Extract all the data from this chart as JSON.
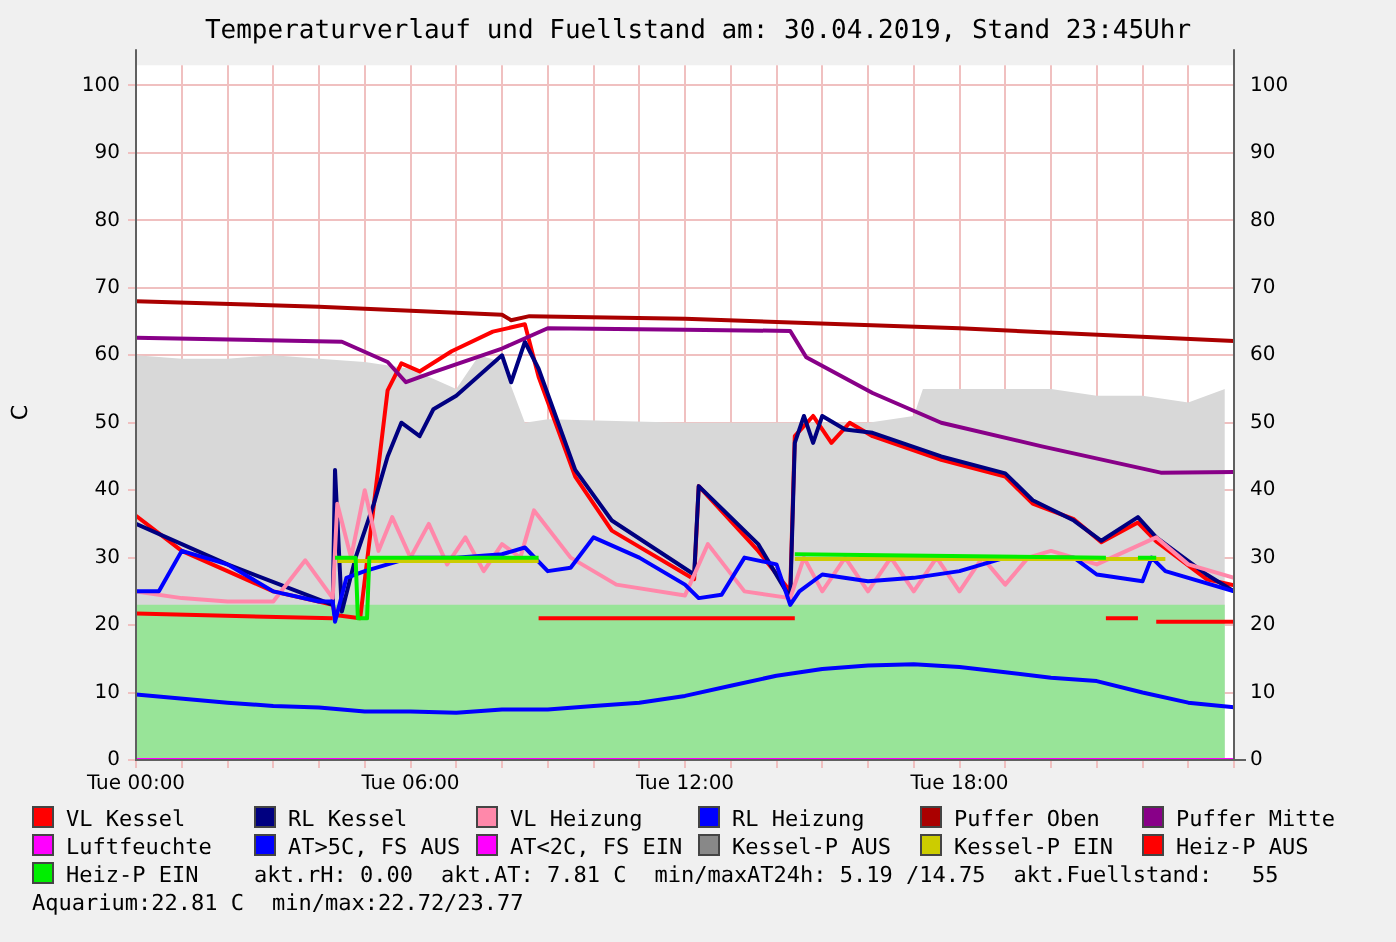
{
  "chart_data": {
    "type": "line",
    "title": "Temperaturverlauf und Fuellstand am: 30.04.2019, Stand 23:45Uhr",
    "ylabel": "C",
    "xlim": [
      "2019-04-30T00:00",
      "2019-05-01T00:00"
    ],
    "xticks": [
      {
        "value": "2019-04-30T00:00",
        "label": "Tue 00:00"
      },
      {
        "value": "2019-04-30T01:00",
        "label": null
      },
      {
        "value": "2019-04-30T02:00",
        "label": null
      },
      {
        "value": "2019-04-30T03:00",
        "label": null
      },
      {
        "value": "2019-04-30T04:00",
        "label": null
      },
      {
        "value": "2019-04-30T05:00",
        "label": null
      },
      {
        "value": "2019-04-30T06:00",
        "label": "Tue 06:00"
      },
      {
        "value": "2019-04-30T07:00",
        "label": null
      },
      {
        "value": "2019-04-30T08:00",
        "label": null
      },
      {
        "value": "2019-04-30T09:00",
        "label": null
      },
      {
        "value": "2019-04-30T10:00",
        "label": null
      },
      {
        "value": "2019-04-30T11:00",
        "label": null
      },
      {
        "value": "2019-04-30T12:00",
        "label": "Tue 12:00"
      },
      {
        "value": "2019-04-30T13:00",
        "label": null
      },
      {
        "value": "2019-04-30T14:00",
        "label": null
      },
      {
        "value": "2019-04-30T15:00",
        "label": null
      },
      {
        "value": "2019-04-30T16:00",
        "label": null
      },
      {
        "value": "2019-04-30T17:00",
        "label": null
      },
      {
        "value": "2019-04-30T18:00",
        "label": "Tue 18:00"
      },
      {
        "value": "2019-04-30T19:00",
        "label": null
      },
      {
        "value": "2019-04-30T20:00",
        "label": null
      },
      {
        "value": "2019-04-30T21:00",
        "label": null
      },
      {
        "value": "2019-04-30T22:00",
        "label": null
      },
      {
        "value": "2019-04-30T23:00",
        "label": null
      },
      {
        "value": "2019-05-01T00:00",
        "label": null
      }
    ],
    "ylim": [
      0,
      103
    ],
    "yticks": [
      0,
      10,
      20,
      30,
      40,
      50,
      60,
      70,
      80,
      90,
      100
    ],
    "y2lim": [
      0,
      103
    ],
    "y2ticks": [
      0,
      10,
      20,
      30,
      40,
      50,
      60,
      70,
      80,
      90,
      100
    ],
    "grid": true,
    "legend": "bottom",
    "marker": "none",
    "series": [
      {
        "type": "area",
        "color": "#d8d8d8",
        "x": [
          "2019-04-30T00:00",
          "2019-04-30T01:00",
          "2019-04-30T02:00",
          "2019-04-30T03:00",
          "2019-04-30T04:00",
          "2019-04-30T05:00",
          "2019-04-30T06:00",
          "2019-04-30T07:00",
          "2019-04-30T07:30",
          "2019-04-30T08:00",
          "2019-04-30T08:30",
          "2019-04-30T09:00",
          "2019-04-30T12:00",
          "2019-04-30T16:00",
          "2019-04-30T17:00",
          "2019-04-30T17:12",
          "2019-04-30T19:00",
          "2019-04-30T20:00",
          "2019-04-30T21:00",
          "2019-04-30T22:00",
          "2019-04-30T23:00",
          "2019-04-30T23:48"
        ],
        "values": [
          60,
          59.5,
          59.5,
          60,
          59.5,
          59,
          58,
          55,
          60,
          59,
          50,
          50.5,
          50,
          50,
          51,
          55,
          55,
          55,
          54,
          54,
          53,
          55
        ]
      },
      {
        "type": "area",
        "color": "#98e498",
        "x": [
          "2019-04-30T00:00",
          "2019-04-30T23:48"
        ],
        "values": [
          23,
          23
        ]
      },
      {
        "name": "VL Kessel",
        "color": "#ff0000",
        "x": [
          "2019-04-30T00:00",
          "2019-04-30T01:00",
          "2019-04-30T02:00",
          "2019-04-30T03:00",
          "2019-04-30T04:18",
          "2019-04-30T04:21",
          "2019-04-30T04:54",
          "2019-04-30T05:30",
          "2019-04-30T05:48",
          "2019-04-30T06:12",
          "2019-04-30T06:54",
          "2019-04-30T07:48",
          "2019-04-30T08:30",
          "2019-04-30T08:48",
          "2019-04-30T09:36",
          "2019-04-30T10:24",
          "2019-04-30T12:12",
          "2019-04-30T12:18",
          "2019-04-30T13:36",
          "2019-04-30T14:18",
          "2019-04-30T14:24",
          "2019-04-30T14:48",
          "2019-04-30T15:12",
          "2019-04-30T15:36",
          "2019-04-30T16:06",
          "2019-04-30T17:36",
          "2019-04-30T19:00",
          "2019-04-30T19:36",
          "2019-04-30T20:30",
          "2019-04-30T21:06",
          "2019-04-30T21:54",
          "2019-04-30T22:18",
          "2019-04-30T23:24",
          "2019-05-01T00:00"
        ],
        "values": [
          36.2,
          31,
          28,
          25,
          23,
          21.5,
          21,
          54.8,
          58.8,
          57.6,
          60.6,
          63.5,
          64.6,
          56.8,
          42,
          34,
          26.8,
          40.6,
          31,
          25,
          48,
          51,
          47,
          50,
          48,
          44.5,
          42,
          38,
          35.7,
          32.3,
          35.2,
          32.4,
          26.8,
          25.9
        ]
      },
      {
        "name": "RL Kessel",
        "color": "#000080",
        "x": [
          "2019-04-30T00:00",
          "2019-04-30T02:00",
          "2019-04-30T04:18",
          "2019-04-30T04:21",
          "2019-04-30T04:30",
          "2019-04-30T04:48",
          "2019-04-30T05:12",
          "2019-04-30T05:30",
          "2019-04-30T05:48",
          "2019-04-30T06:12",
          "2019-04-30T06:30",
          "2019-04-30T07:00",
          "2019-04-30T07:30",
          "2019-04-30T08:00",
          "2019-04-30T08:12",
          "2019-04-30T08:30",
          "2019-04-30T08:48",
          "2019-04-30T09:36",
          "2019-04-30T10:24",
          "2019-04-30T12:12",
          "2019-04-30T12:18",
          "2019-04-30T13:36",
          "2019-04-30T14:18",
          "2019-04-30T14:24",
          "2019-04-30T14:36",
          "2019-04-30T14:48",
          "2019-04-30T15:00",
          "2019-04-30T15:30",
          "2019-04-30T16:06",
          "2019-04-30T17:36",
          "2019-04-30T19:00",
          "2019-04-30T19:36",
          "2019-04-30T20:30",
          "2019-04-30T21:06",
          "2019-04-30T21:54",
          "2019-04-30T22:18",
          "2019-04-30T23:24",
          "2019-05-01T00:00"
        ],
        "values": [
          35,
          29,
          23,
          43,
          22,
          30,
          38,
          45,
          50,
          48,
          52,
          54,
          57,
          60,
          56,
          62,
          58,
          43,
          35.5,
          27.5,
          40.6,
          32,
          24,
          47,
          51,
          47,
          51,
          49,
          48.5,
          45,
          42.5,
          38.5,
          35.5,
          32.5,
          36,
          33,
          27.5,
          25
        ]
      },
      {
        "name": "VL Heizung",
        "color": "#ff88aa",
        "x": [
          "2019-04-30T00:00",
          "2019-04-30T01:00",
          "2019-04-30T02:00",
          "2019-04-30T03:00",
          "2019-04-30T03:42",
          "2019-04-30T04:18",
          "2019-04-30T04:24",
          "2019-04-30T04:42",
          "2019-04-30T05:00",
          "2019-04-30T05:18",
          "2019-04-30T05:36",
          "2019-04-30T06:00",
          "2019-04-30T06:24",
          "2019-04-30T06:48",
          "2019-04-30T07:12",
          "2019-04-30T07:36",
          "2019-04-30T08:00",
          "2019-04-30T08:24",
          "2019-04-30T08:42",
          "2019-04-30T09:30",
          "2019-04-30T10:30",
          "2019-04-30T12:00",
          "2019-04-30T12:30",
          "2019-04-30T13:18",
          "2019-04-30T14:18",
          "2019-04-30T14:36",
          "2019-04-30T15:00",
          "2019-04-30T15:30",
          "2019-04-30T16:00",
          "2019-04-30T16:30",
          "2019-04-30T17:00",
          "2019-04-30T17:30",
          "2019-04-30T18:00",
          "2019-04-30T18:30",
          "2019-04-30T19:00",
          "2019-04-30T19:30",
          "2019-04-30T20:00",
          "2019-04-30T21:00",
          "2019-04-30T22:18",
          "2019-04-30T23:00",
          "2019-05-01T00:00"
        ],
        "values": [
          25,
          24,
          23.5,
          23.5,
          29.6,
          24,
          38,
          30,
          40,
          31,
          36,
          30,
          35,
          29,
          33,
          28,
          32,
          30,
          37,
          30,
          26,
          24.4,
          32,
          25,
          24,
          30,
          25,
          30,
          25,
          30,
          25,
          30,
          25,
          30,
          26,
          30,
          31,
          29,
          33,
          29,
          27
        ]
      },
      {
        "name": "RL Heizung",
        "color": "#0000ff",
        "x": [
          "2019-04-30T00:00",
          "2019-04-30T00:30",
          "2019-04-30T01:00",
          "2019-04-30T02:00",
          "2019-04-30T03:00",
          "2019-04-30T04:00",
          "2019-04-30T04:18",
          "2019-04-30T04:21",
          "2019-04-30T04:36",
          "2019-04-30T05:00",
          "2019-04-30T06:00",
          "2019-04-30T07:00",
          "2019-04-30T08:00",
          "2019-04-30T08:30",
          "2019-04-30T09:00",
          "2019-04-30T09:30",
          "2019-04-30T10:00",
          "2019-04-30T11:00",
          "2019-04-30T12:00",
          "2019-04-30T12:18",
          "2019-04-30T12:48",
          "2019-04-30T13:18",
          "2019-04-30T14:00",
          "2019-04-30T14:18",
          "2019-04-30T14:30",
          "2019-04-30T15:00",
          "2019-04-30T16:00",
          "2019-04-30T17:00",
          "2019-04-30T18:00",
          "2019-04-30T19:00",
          "2019-04-30T20:00",
          "2019-04-30T20:30",
          "2019-04-30T21:00",
          "2019-04-30T22:00",
          "2019-04-30T22:12",
          "2019-04-30T22:30",
          "2019-05-01T00:00"
        ],
        "values": [
          25,
          25,
          31,
          29,
          25,
          23.5,
          23.5,
          20.5,
          27,
          28,
          30,
          30,
          30.5,
          31.5,
          28,
          28.5,
          33,
          30,
          26,
          24,
          24.5,
          30,
          29,
          23,
          25,
          27.5,
          26.5,
          27,
          28,
          30,
          30,
          30,
          27.5,
          26.5,
          30,
          28,
          25
        ]
      },
      {
        "name": "Puffer Oben",
        "color": "#aa0000",
        "x": [
          "2019-04-30T00:00",
          "2019-04-30T04:00",
          "2019-04-30T08:00",
          "2019-04-30T08:12",
          "2019-04-30T08:36",
          "2019-04-30T12:00",
          "2019-04-30T18:00",
          "2019-05-01T00:00"
        ],
        "values": [
          68,
          67.2,
          66,
          65.2,
          65.8,
          65.4,
          64,
          62.1
        ]
      },
      {
        "name": "Puffer Mitte",
        "color": "#880088",
        "x": [
          "2019-04-30T00:00",
          "2019-04-30T04:30",
          "2019-04-30T05:30",
          "2019-04-30T05:54",
          "2019-04-30T06:30",
          "2019-04-30T08:00",
          "2019-04-30T09:00",
          "2019-04-30T12:00",
          "2019-04-30T14:18",
          "2019-04-30T14:39",
          "2019-04-30T16:06",
          "2019-04-30T17:36",
          "2019-04-30T19:48",
          "2019-04-30T22:24",
          "2019-05-01T00:00"
        ],
        "values": [
          62.6,
          62,
          59,
          56,
          57.5,
          61,
          64,
          63.8,
          63.6,
          59.7,
          54.4,
          50,
          46.5,
          42.6,
          42.7
        ]
      },
      {
        "name": "Luftfeuchte",
        "color": "#ff00ff",
        "x": [
          "2019-04-30T00:00",
          "2019-05-01T00:00"
        ],
        "values": [
          0,
          0
        ]
      },
      {
        "name": "AT>5C, FS AUS",
        "color": "#0000ff",
        "x": [
          "2019-04-30T00:00",
          "2019-04-30T02:00",
          "2019-04-30T03:00",
          "2019-04-30T04:00",
          "2019-04-30T05:00",
          "2019-04-30T06:00",
          "2019-04-30T07:00",
          "2019-04-30T08:00",
          "2019-04-30T09:00",
          "2019-04-30T10:00",
          "2019-04-30T11:00",
          "2019-04-30T12:00",
          "2019-04-30T13:00",
          "2019-04-30T14:00",
          "2019-04-30T15:00",
          "2019-04-30T16:00",
          "2019-04-30T17:00",
          "2019-04-30T18:00",
          "2019-04-30T19:00",
          "2019-04-30T20:00",
          "2019-04-30T21:00",
          "2019-04-30T22:00",
          "2019-04-30T23:00",
          "2019-05-01T00:00"
        ],
        "values": [
          9.7,
          8.5,
          8,
          7.8,
          7.2,
          7.2,
          7,
          7.5,
          7.5,
          8,
          8.5,
          9.5,
          11,
          12.5,
          13.5,
          14,
          14.2,
          13.8,
          13,
          12.2,
          11.7,
          10,
          8.5,
          7.8
        ]
      },
      {
        "name": "AT<2C, FS EIN",
        "color": "#ff00ff"
      },
      {
        "name": "Kessel-P AUS",
        "color": "#888888"
      },
      {
        "name": "Kessel-P EIN",
        "color": "#cccc00",
        "x": [
          "2019-04-30T04:24",
          "2019-04-30T08:48",
          "2019-04-30T08:51",
          "2019-04-30T14:24",
          "2019-04-30T22:30"
        ],
        "values": [
          29.5,
          29.5,
          null,
          29.8,
          29.8
        ]
      },
      {
        "name": "Heiz-P AUS",
        "color": "#ff0000",
        "x": [
          "2019-04-30T00:00",
          "2019-04-30T04:18",
          "2019-04-30T04:21",
          "2019-04-30T08:48",
          "2019-04-30T14:24",
          "2019-04-30T14:27",
          "2019-04-30T21:12",
          "2019-04-30T21:54",
          "2019-04-30T21:57",
          "2019-04-30T22:18",
          "2019-05-01T00:00"
        ],
        "values": [
          21.7,
          21,
          null,
          21,
          21,
          null,
          21,
          21,
          null,
          20.5,
          20.5
        ]
      },
      {
        "name": "Heiz-P EIN",
        "color": "#00ee00",
        "x": [
          "2019-04-30T04:21",
          "2019-04-30T04:48",
          "2019-04-30T04:51",
          "2019-04-30T05:03",
          "2019-04-30T05:06",
          "2019-04-30T08:48",
          "2019-04-30T08:51",
          "2019-04-30T14:24",
          "2019-04-30T21:12",
          "2019-04-30T21:15",
          "2019-04-30T21:54",
          "2019-04-30T22:18"
        ],
        "values": [
          30,
          30,
          21,
          21,
          30,
          30,
          null,
          30.5,
          30,
          null,
          30,
          30
        ]
      }
    ],
    "annotations": [
      "akt.rH: 0.00",
      "akt.AT: 7.81 C",
      "min/maxAT24h: 5.19 /14.75",
      "akt.Fuellstand:   55",
      "Aquarium:22.81 C",
      "min/max:22.72/23.77"
    ]
  }
}
